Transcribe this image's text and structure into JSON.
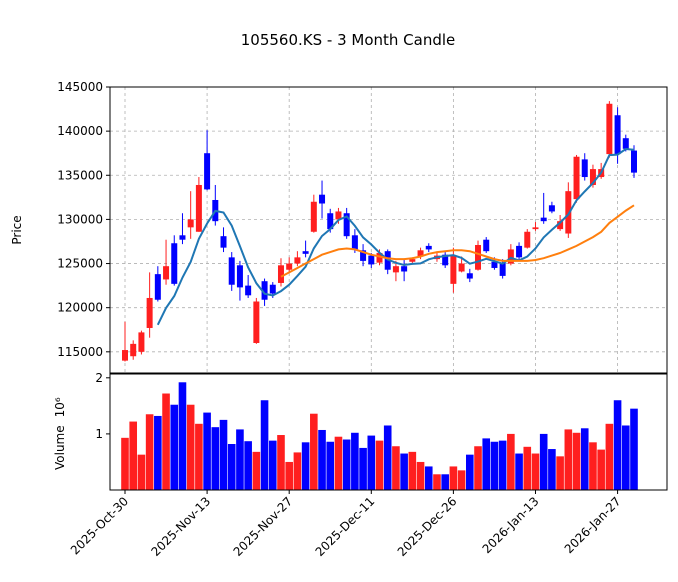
{
  "chart_data": {
    "type": "candlestick",
    "title": "105560.KS - 3 Month Candle",
    "y_label": "Price",
    "volume_label": "Volume",
    "volume_scale": "10⁶",
    "up_color": "#ff1f1f",
    "down_color": "#0000ff",
    "grid": true,
    "categories": [
      "2025-Oct-30",
      null,
      null,
      null,
      null,
      null,
      null,
      null,
      null,
      null,
      "2025-Nov-13",
      null,
      null,
      null,
      null,
      null,
      null,
      null,
      null,
      null,
      "2025-Nov-27",
      null,
      null,
      null,
      null,
      null,
      null,
      null,
      null,
      null,
      "2025-Dec-11",
      null,
      null,
      null,
      null,
      null,
      null,
      null,
      null,
      null,
      "2025-Dec-26",
      null,
      null,
      null,
      null,
      null,
      null,
      null,
      null,
      null,
      "2026-Jan-13",
      null,
      null,
      null,
      null,
      null,
      null,
      null,
      null,
      null,
      "2026-Jan-27",
      null,
      null
    ],
    "open": [
      114000,
      114500,
      115000,
      117700,
      123800,
      123200,
      127300,
      128200,
      129100,
      128600,
      137500,
      132200,
      128100,
      125700,
      124800,
      122500,
      116000,
      123000,
      122600,
      122800,
      124300,
      125000,
      126400,
      128600,
      132800,
      130700,
      130000,
      130700,
      128200,
      126500,
      125900,
      125100,
      126400,
      124000,
      124700,
      125200,
      125800,
      127000,
      125500,
      126000,
      122700,
      124100,
      123900,
      124300,
      127700,
      125200,
      125100,
      125000,
      127000,
      126800,
      128900,
      130200,
      131600,
      128900,
      128400,
      132300,
      136800,
      133900,
      134800,
      137400,
      141800,
      139200,
      137800
    ],
    "high": [
      118400,
      116300,
      117400,
      124000,
      124700,
      127700,
      128200,
      130700,
      133200,
      134800,
      140100,
      133900,
      129100,
      126300,
      125300,
      123700,
      121100,
      123300,
      122900,
      125600,
      125700,
      126400,
      127600,
      132800,
      134400,
      131200,
      131300,
      131300,
      128900,
      127200,
      126200,
      126600,
      126600,
      125300,
      125400,
      125700,
      126800,
      127300,
      126300,
      126300,
      126800,
      125800,
      124400,
      127600,
      128000,
      125700,
      125500,
      127200,
      127400,
      128900,
      129700,
      133000,
      132000,
      130500,
      134200,
      137300,
      137500,
      136200,
      136400,
      143400,
      142700,
      139600,
      138400
    ],
    "low": [
      113900,
      114100,
      114700,
      116600,
      120700,
      122600,
      122500,
      127200,
      127800,
      128600,
      133300,
      129300,
      126300,
      121900,
      120800,
      121100,
      115900,
      120200,
      121100,
      122400,
      124000,
      124700,
      125700,
      128500,
      130100,
      128500,
      129500,
      127800,
      126200,
      124700,
      124500,
      124800,
      123800,
      123000,
      123000,
      124900,
      125500,
      126300,
      125200,
      124500,
      121700,
      124000,
      122900,
      124200,
      126200,
      124300,
      123300,
      124800,
      125400,
      126700,
      128700,
      129500,
      130700,
      128700,
      127900,
      131900,
      134400,
      133600,
      134600,
      137000,
      136300,
      137700,
      134700
    ],
    "close": [
      115200,
      115900,
      117200,
      121100,
      120900,
      124700,
      122700,
      127700,
      130000,
      133900,
      133400,
      129800,
      126800,
      122600,
      122300,
      121400,
      120700,
      120900,
      121600,
      124800,
      125000,
      125700,
      126100,
      132000,
      131800,
      128900,
      130900,
      128100,
      126600,
      125300,
      124900,
      126200,
      124300,
      124700,
      124100,
      125500,
      126500,
      126600,
      125900,
      124800,
      125900,
      125000,
      123300,
      127100,
      126400,
      124500,
      123600,
      126600,
      125700,
      128600,
      129100,
      129800,
      130900,
      129800,
      133200,
      137100,
      134800,
      135700,
      135700,
      143100,
      137400,
      138000,
      135300
    ],
    "volume": [
      0.93,
      1.22,
      0.63,
      1.35,
      1.32,
      1.72,
      1.52,
      1.92,
      1.52,
      1.18,
      1.38,
      1.12,
      1.25,
      0.82,
      1.08,
      0.87,
      0.68,
      1.6,
      0.88,
      0.98,
      0.5,
      0.67,
      0.85,
      1.36,
      1.07,
      0.86,
      0.95,
      0.9,
      1.02,
      0.75,
      0.97,
      0.88,
      1.15,
      0.78,
      0.65,
      0.68,
      0.5,
      0.42,
      0.28,
      0.28,
      0.42,
      0.35,
      0.63,
      0.78,
      0.92,
      0.86,
      0.88,
      1.0,
      0.65,
      0.77,
      0.65,
      1.0,
      0.73,
      0.6,
      1.08,
      1.02,
      1.1,
      0.85,
      0.72,
      1.18,
      1.6,
      1.15,
      1.45
    ],
    "overlays": [
      {
        "color": "#1f77b4",
        "values": [
          null,
          null,
          null,
          null,
          118060,
          119960,
          121320,
          123420,
          125200,
          127800,
          129540,
          130960,
          130780,
          129300,
          126980,
          124580,
          122760,
          121580,
          121380,
          121880,
          122600,
          123600,
          124640,
          126720,
          128120,
          128900,
          129940,
          130340,
          129260,
          127960,
          127160,
          126220,
          125460,
          125080,
          124840,
          124960,
          125020,
          125480,
          125720,
          125860,
          125940,
          125640,
          124980,
          125220,
          125540,
          125260,
          124980,
          125640,
          125360,
          125800,
          126720,
          127960,
          128820,
          129640,
          130560,
          132160,
          133160,
          134120,
          135300,
          137280,
          137340,
          137980,
          137900
        ]
      },
      {
        "color": "#ff7f0e",
        "values": [
          null,
          null,
          null,
          null,
          null,
          null,
          null,
          null,
          null,
          null,
          null,
          null,
          null,
          null,
          null,
          null,
          null,
          null,
          null,
          123500,
          124000,
          124500,
          125000,
          125500,
          126000,
          126300,
          126600,
          126700,
          126600,
          126300,
          126000,
          125800,
          125600,
          125500,
          125500,
          125600,
          125800,
          126100,
          126300,
          126400,
          126500,
          126500,
          126400,
          126100,
          125800,
          125500,
          125300,
          125300,
          125300,
          125300,
          125400,
          125600,
          125900,
          126200,
          126600,
          127000,
          127500,
          128000,
          128600,
          129600,
          130300,
          131000,
          131600
        ]
      }
    ],
    "ylim": [
      112600,
      145000
    ],
    "yticks": [
      115000,
      120000,
      125000,
      130000,
      135000,
      140000,
      145000
    ],
    "volume_ylim": [
      0,
      2.05
    ],
    "volume_yticks": [
      1,
      2
    ]
  }
}
